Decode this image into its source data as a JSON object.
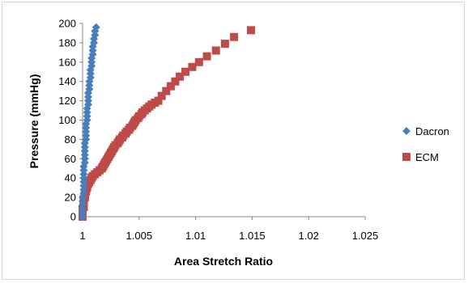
{
  "chart_data": {
    "type": "scatter",
    "xlabel": "Area Stretch Ratio",
    "ylabel": "Pressure (mmHg)",
    "xlim": [
      1,
      1.025
    ],
    "ylim": [
      0,
      200
    ],
    "x_ticks": [
      "1",
      "1.005",
      "1.01",
      "1.015",
      "1.02",
      "1.025"
    ],
    "y_ticks": [
      "0",
      "20",
      "40",
      "60",
      "80",
      "100",
      "120",
      "140",
      "160",
      "180",
      "200"
    ],
    "legend_position": "right",
    "grid": false,
    "series": [
      {
        "name": "Dacron",
        "marker": "diamond",
        "color": "#4a7ebb",
        "points": [
          [
            1.0,
            0
          ],
          [
            1.0,
            4
          ],
          [
            1.0,
            8
          ],
          [
            1.0,
            12
          ],
          [
            1.0,
            16
          ],
          [
            1.0,
            20
          ],
          [
            1.0001,
            24
          ],
          [
            1.0001,
            28
          ],
          [
            1.0001,
            32
          ],
          [
            1.0001,
            36
          ],
          [
            1.0001,
            40
          ],
          [
            1.0001,
            44
          ],
          [
            1.0001,
            48
          ],
          [
            1.0001,
            52
          ],
          [
            1.0002,
            56
          ],
          [
            1.0002,
            60
          ],
          [
            1.0002,
            64
          ],
          [
            1.0002,
            68
          ],
          [
            1.0002,
            72
          ],
          [
            1.0002,
            76
          ],
          [
            1.0003,
            80
          ],
          [
            1.0003,
            84
          ],
          [
            1.0003,
            88
          ],
          [
            1.0003,
            92
          ],
          [
            1.0003,
            96
          ],
          [
            1.0004,
            100
          ],
          [
            1.0004,
            104
          ],
          [
            1.0004,
            108
          ],
          [
            1.0004,
            112
          ],
          [
            1.0005,
            116
          ],
          [
            1.0005,
            120
          ],
          [
            1.0005,
            124
          ],
          [
            1.0005,
            128
          ],
          [
            1.0006,
            132
          ],
          [
            1.0006,
            136
          ],
          [
            1.0006,
            140
          ],
          [
            1.0007,
            144
          ],
          [
            1.0007,
            148
          ],
          [
            1.0007,
            152
          ],
          [
            1.0008,
            156
          ],
          [
            1.0008,
            160
          ],
          [
            1.0008,
            164
          ],
          [
            1.0009,
            168
          ],
          [
            1.0009,
            172
          ],
          [
            1.0009,
            176
          ],
          [
            1.001,
            180
          ],
          [
            1.001,
            184
          ],
          [
            1.0011,
            188
          ],
          [
            1.0011,
            192
          ],
          [
            1.0012,
            196
          ]
        ]
      },
      {
        "name": "ECM",
        "marker": "square",
        "color": "#be4b48",
        "points": [
          [
            1.0,
            0
          ],
          [
            1.0,
            2
          ],
          [
            1.0,
            4
          ],
          [
            1.0,
            6
          ],
          [
            1.0,
            8
          ],
          [
            1.0001,
            10
          ],
          [
            1.0001,
            12
          ],
          [
            1.0001,
            14
          ],
          [
            1.0001,
            16
          ],
          [
            1.0001,
            18
          ],
          [
            1.0002,
            20
          ],
          [
            1.0002,
            22
          ],
          [
            1.0002,
            24
          ],
          [
            1.0003,
            26
          ],
          [
            1.0003,
            28
          ],
          [
            1.0004,
            30
          ],
          [
            1.0004,
            32
          ],
          [
            1.0005,
            34
          ],
          [
            1.0006,
            36
          ],
          [
            1.0007,
            38
          ],
          [
            1.0008,
            40
          ],
          [
            1.0009,
            42
          ],
          [
            1.0011,
            44
          ],
          [
            1.0013,
            46
          ],
          [
            1.0015,
            48
          ],
          [
            1.0017,
            50
          ],
          [
            1.0018,
            52
          ],
          [
            1.0019,
            54
          ],
          [
            1.002,
            56
          ],
          [
            1.0021,
            58
          ],
          [
            1.0022,
            60
          ],
          [
            1.0023,
            62
          ],
          [
            1.0024,
            64
          ],
          [
            1.0025,
            66
          ],
          [
            1.0026,
            68
          ],
          [
            1.0027,
            70
          ],
          [
            1.0028,
            72
          ],
          [
            1.0029,
            74
          ],
          [
            1.0031,
            76
          ],
          [
            1.0032,
            78
          ],
          [
            1.0033,
            80
          ],
          [
            1.0035,
            82
          ],
          [
            1.0036,
            84
          ],
          [
            1.0038,
            86
          ],
          [
            1.0039,
            88
          ],
          [
            1.0041,
            90
          ],
          [
            1.0042,
            92
          ],
          [
            1.0044,
            94
          ],
          [
            1.0045,
            96
          ],
          [
            1.0046,
            98
          ],
          [
            1.0047,
            100
          ],
          [
            1.0049,
            102
          ],
          [
            1.005,
            104
          ],
          [
            1.0052,
            106
          ],
          [
            1.0053,
            108
          ],
          [
            1.0055,
            110
          ],
          [
            1.0057,
            112
          ],
          [
            1.0059,
            114
          ],
          [
            1.0061,
            116
          ],
          [
            1.0064,
            118
          ],
          [
            1.0067,
            120
          ],
          [
            1.007,
            125
          ],
          [
            1.0074,
            130
          ],
          [
            1.0078,
            135
          ],
          [
            1.0082,
            140
          ],
          [
            1.0086,
            145
          ],
          [
            1.0091,
            150
          ],
          [
            1.0097,
            155
          ],
          [
            1.0103,
            160
          ],
          [
            1.011,
            166
          ],
          [
            1.0118,
            172
          ],
          [
            1.0126,
            179
          ],
          [
            1.0134,
            186
          ],
          [
            1.0149,
            193
          ]
        ]
      }
    ]
  }
}
